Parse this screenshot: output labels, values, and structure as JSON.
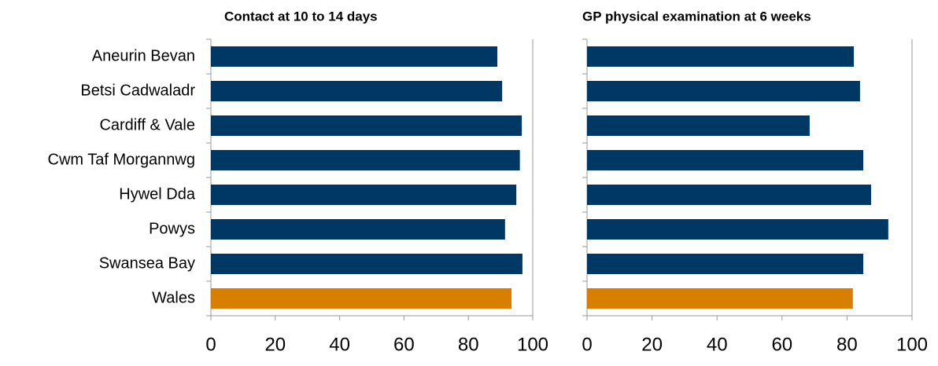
{
  "chart_data": [
    {
      "type": "barh",
      "title": "Contact at 10 to 14 days",
      "categories": [
        "Aneurin Bevan",
        "Betsi Cadwaladr",
        "Cardiff & Vale",
        "Cwm Taf Morgannwg",
        "Hywel Dda",
        "Powys",
        "Swansea Bay",
        "Wales"
      ],
      "values": [
        89,
        90.5,
        96.6,
        96,
        94.9,
        91.4,
        96.8,
        93.4
      ],
      "colors": [
        "#003865",
        "#003865",
        "#003865",
        "#003865",
        "#003865",
        "#003865",
        "#003865",
        "#d97f00"
      ],
      "xlim": [
        0,
        100
      ],
      "xticks": [
        0,
        20,
        40,
        60,
        80,
        100
      ]
    },
    {
      "type": "barh",
      "title": "GP physical examination at 6 weeks",
      "values": [
        82.1,
        84,
        68.5,
        85,
        87.4,
        92.7,
        85,
        81.8
      ],
      "colors": [
        "#003865",
        "#003865",
        "#003865",
        "#003865",
        "#003865",
        "#003865",
        "#003865",
        "#d97f00"
      ],
      "xlim": [
        0,
        100
      ],
      "xticks": [
        0,
        20,
        40,
        60,
        80,
        100
      ]
    }
  ]
}
